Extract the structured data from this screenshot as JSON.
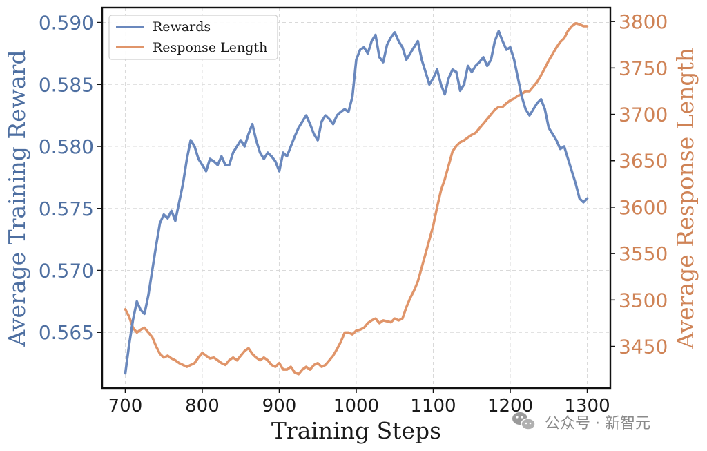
{
  "chart_data": {
    "type": "line",
    "xlabel": "Training Steps",
    "ylabel_left": "Average Training Reward",
    "ylabel_right": "Average Response Length",
    "xlim": [
      670,
      1330
    ],
    "ylim_left": [
      0.5605,
      0.5912
    ],
    "ylim_right": [
      3405,
      3815
    ],
    "x_ticks": [
      700,
      800,
      900,
      1000,
      1100,
      1200,
      1300
    ],
    "x_tick_labels": [
      "700",
      "800",
      "900",
      "1000",
      "1100",
      "1200",
      "1300"
    ],
    "y_left_ticks": [
      0.565,
      0.57,
      0.575,
      0.58,
      0.585,
      0.59
    ],
    "y_left_tick_labels": [
      "0.565",
      "0.570",
      "0.575",
      "0.580",
      "0.585",
      "0.590"
    ],
    "y_right_ticks": [
      3450,
      3500,
      3550,
      3600,
      3650,
      3700,
      3750,
      3800
    ],
    "y_right_tick_labels": [
      "3450",
      "3500",
      "3550",
      "3600",
      "3650",
      "3700",
      "3750",
      "3800"
    ],
    "grid": true,
    "legend_position": "top-left",
    "series": [
      {
        "name": "Rewards",
        "axis": "left",
        "color": "#6a88bd",
        "x": [
          700,
          705,
          710,
          715,
          720,
          725,
          730,
          735,
          740,
          745,
          750,
          755,
          760,
          765,
          770,
          775,
          780,
          785,
          790,
          795,
          800,
          805,
          810,
          815,
          820,
          825,
          830,
          835,
          840,
          845,
          850,
          855,
          860,
          865,
          870,
          875,
          880,
          885,
          890,
          895,
          900,
          905,
          910,
          915,
          920,
          925,
          930,
          935,
          940,
          945,
          950,
          955,
          960,
          965,
          970,
          975,
          980,
          985,
          990,
          995,
          1000,
          1005,
          1010,
          1015,
          1020,
          1025,
          1030,
          1035,
          1040,
          1045,
          1050,
          1055,
          1060,
          1065,
          1070,
          1075,
          1080,
          1085,
          1090,
          1095,
          1100,
          1105,
          1110,
          1115,
          1120,
          1125,
          1130,
          1135,
          1140,
          1145,
          1150,
          1155,
          1160,
          1165,
          1170,
          1175,
          1180,
          1185,
          1190,
          1195,
          1200,
          1205,
          1210,
          1215,
          1220,
          1225,
          1230,
          1235,
          1240,
          1245,
          1250,
          1255,
          1260,
          1265,
          1270,
          1275,
          1280,
          1285,
          1290,
          1295,
          1300
        ],
        "values": [
          0.5617,
          0.564,
          0.566,
          0.5675,
          0.5668,
          0.5665,
          0.568,
          0.57,
          0.572,
          0.5738,
          0.5745,
          0.5742,
          0.5748,
          0.574,
          0.5755,
          0.577,
          0.579,
          0.5805,
          0.58,
          0.579,
          0.5785,
          0.578,
          0.579,
          0.5788,
          0.5785,
          0.5792,
          0.5785,
          0.5785,
          0.5795,
          0.58,
          0.5805,
          0.58,
          0.581,
          0.5818,
          0.5805,
          0.5795,
          0.579,
          0.5795,
          0.5792,
          0.5788,
          0.578,
          0.5795,
          0.5792,
          0.58,
          0.5808,
          0.5815,
          0.582,
          0.5825,
          0.5818,
          0.581,
          0.5805,
          0.582,
          0.5825,
          0.5822,
          0.5818,
          0.5825,
          0.5828,
          0.583,
          0.5828,
          0.584,
          0.587,
          0.5878,
          0.588,
          0.5875,
          0.5885,
          0.589,
          0.5872,
          0.5868,
          0.5882,
          0.5888,
          0.5892,
          0.5885,
          0.588,
          0.587,
          0.5875,
          0.588,
          0.5885,
          0.587,
          0.586,
          0.585,
          0.5855,
          0.5862,
          0.585,
          0.5842,
          0.5855,
          0.5862,
          0.586,
          0.5845,
          0.585,
          0.5865,
          0.586,
          0.5865,
          0.5868,
          0.5872,
          0.5865,
          0.587,
          0.5885,
          0.5893,
          0.5885,
          0.5878,
          0.588,
          0.587,
          0.5855,
          0.584,
          0.583,
          0.5825,
          0.583,
          0.5835,
          0.5838,
          0.583,
          0.5815,
          0.581,
          0.5805,
          0.5798,
          0.58,
          0.579,
          0.578,
          0.577,
          0.5758,
          0.5755,
          0.5758
        ]
      },
      {
        "name": "Response Length",
        "axis": "right",
        "color": "#e0956a",
        "x": [
          700,
          705,
          710,
          715,
          720,
          725,
          730,
          735,
          740,
          745,
          750,
          755,
          760,
          765,
          770,
          775,
          780,
          785,
          790,
          795,
          800,
          805,
          810,
          815,
          820,
          825,
          830,
          835,
          840,
          845,
          850,
          855,
          860,
          865,
          870,
          875,
          880,
          885,
          890,
          895,
          900,
          905,
          910,
          915,
          920,
          925,
          930,
          935,
          940,
          945,
          950,
          955,
          960,
          965,
          970,
          975,
          980,
          985,
          990,
          995,
          1000,
          1005,
          1010,
          1015,
          1020,
          1025,
          1030,
          1035,
          1040,
          1045,
          1050,
          1055,
          1060,
          1065,
          1070,
          1075,
          1080,
          1085,
          1090,
          1095,
          1100,
          1105,
          1110,
          1115,
          1120,
          1125,
          1130,
          1135,
          1140,
          1145,
          1150,
          1155,
          1160,
          1165,
          1170,
          1175,
          1180,
          1185,
          1190,
          1195,
          1200,
          1205,
          1210,
          1215,
          1220,
          1225,
          1230,
          1235,
          1240,
          1245,
          1250,
          1255,
          1260,
          1265,
          1270,
          1275,
          1280,
          1285,
          1290,
          1295,
          1300
        ],
        "values": [
          3490,
          3482,
          3470,
          3465,
          3468,
          3470,
          3465,
          3460,
          3450,
          3442,
          3438,
          3440,
          3437,
          3435,
          3432,
          3430,
          3428,
          3430,
          3432,
          3438,
          3443,
          3440,
          3437,
          3438,
          3435,
          3432,
          3430,
          3435,
          3438,
          3435,
          3440,
          3445,
          3448,
          3442,
          3438,
          3435,
          3438,
          3435,
          3430,
          3428,
          3432,
          3425,
          3425,
          3428,
          3422,
          3420,
          3425,
          3428,
          3425,
          3430,
          3432,
          3428,
          3430,
          3435,
          3440,
          3447,
          3455,
          3465,
          3465,
          3463,
          3467,
          3468,
          3470,
          3475,
          3478,
          3480,
          3475,
          3478,
          3477,
          3476,
          3480,
          3478,
          3480,
          3492,
          3502,
          3510,
          3520,
          3535,
          3550,
          3565,
          3580,
          3600,
          3618,
          3630,
          3645,
          3660,
          3666,
          3670,
          3672,
          3675,
          3678,
          3680,
          3685,
          3690,
          3695,
          3700,
          3705,
          3708,
          3708,
          3712,
          3715,
          3717,
          3720,
          3722,
          3725,
          3725,
          3730,
          3735,
          3742,
          3750,
          3758,
          3765,
          3772,
          3778,
          3782,
          3790,
          3795,
          3798,
          3797,
          3795,
          3795
        ]
      }
    ]
  },
  "watermark": {
    "text": "公众号 · 新智元",
    "icon": "wechat-icon"
  }
}
